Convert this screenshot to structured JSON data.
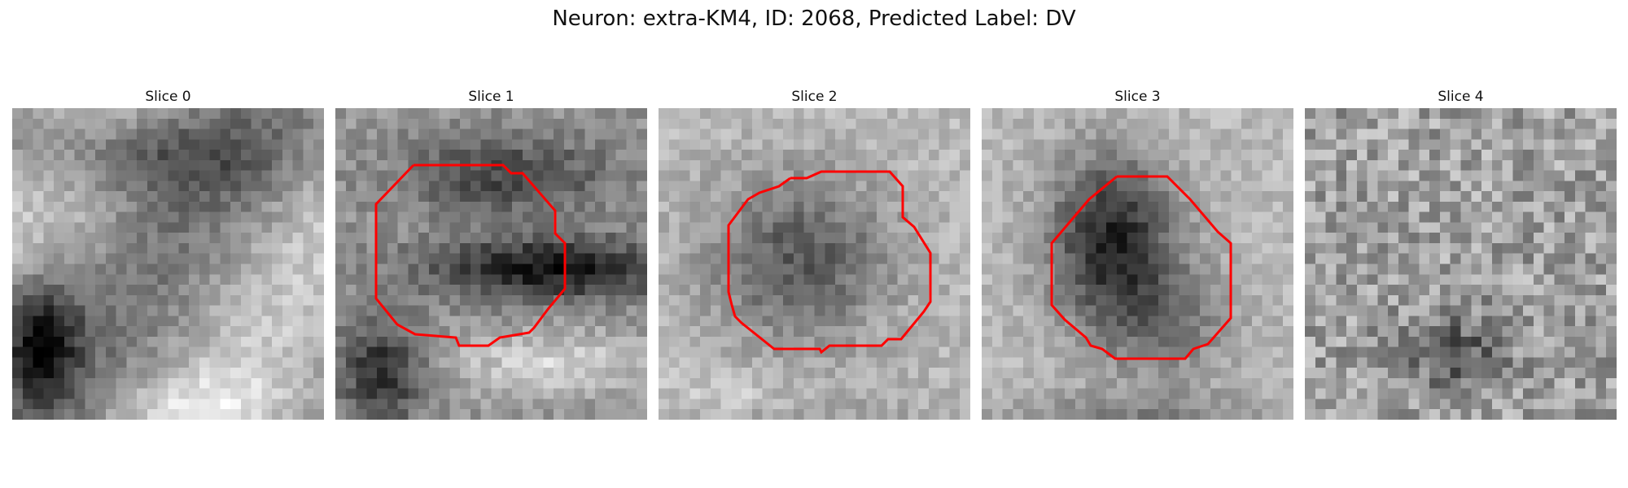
{
  "figure": {
    "title": "Neuron: extra-KM4, ID: 2068, Predicted Label: DV"
  },
  "slices": [
    {
      "title": "Slice 0",
      "contour": false
    },
    {
      "title": "Slice 1",
      "contour": true
    },
    {
      "title": "Slice 2",
      "contour": true
    },
    {
      "title": "Slice 3",
      "contour": true
    },
    {
      "title": "Slice 4",
      "contour": false
    }
  ],
  "colors": {
    "contour": "#ff0000",
    "background": "#ffffff",
    "colormap": "gray"
  }
}
